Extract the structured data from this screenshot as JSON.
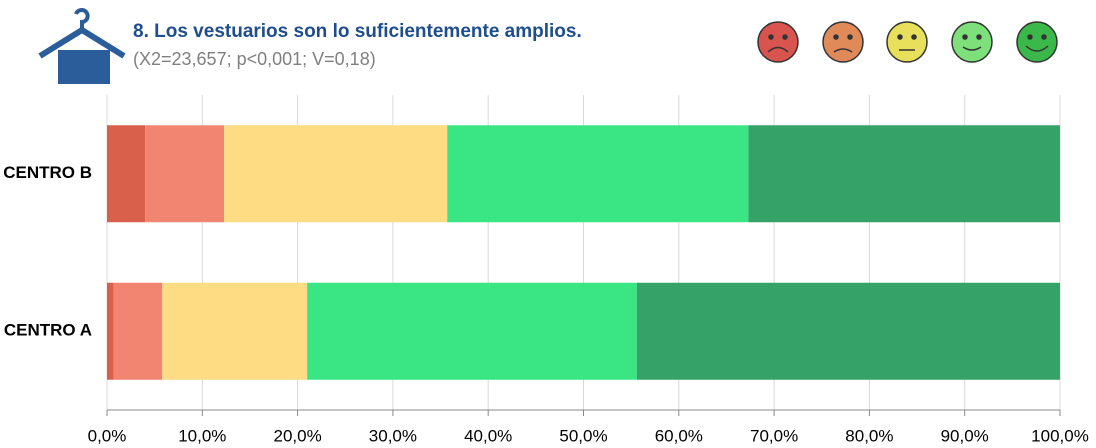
{
  "chart_data": {
    "type": "stacked_barh",
    "title": "8. Los vestuarios son lo suficientemente amplios.",
    "subtitle": "(X2=23,657; p<0,001; V=0,18)",
    "categories": [
      "CENTRO B",
      "CENTRO A"
    ],
    "series": [
      {
        "color": "#d9604a",
        "values": [
          4.0,
          0.7
        ]
      },
      {
        "color": "#f28572",
        "values": [
          8.3,
          5.1
        ]
      },
      {
        "color": "#fddc84",
        "values": [
          23.4,
          15.2
        ]
      },
      {
        "color": "#3ae584",
        "values": [
          31.6,
          34.6
        ]
      },
      {
        "color": "#35a368",
        "values": [
          32.7,
          44.4
        ]
      }
    ],
    "xlim": [
      0,
      100
    ],
    "xticks": [
      {
        "value": 0,
        "label": "0,0%"
      },
      {
        "value": 10,
        "label": "10,0%"
      },
      {
        "value": 20,
        "label": "20,0%"
      },
      {
        "value": 30,
        "label": "30,0%"
      },
      {
        "value": 40,
        "label": "40,0%"
      },
      {
        "value": 50,
        "label": "50,0%"
      },
      {
        "value": 60,
        "label": "60,0%"
      },
      {
        "value": 70,
        "label": "70,0%"
      },
      {
        "value": 80,
        "label": "80,0%"
      },
      {
        "value": 90,
        "label": "90,0%"
      },
      {
        "value": 100,
        "label": "100,0%"
      }
    ],
    "grid": true
  }
}
